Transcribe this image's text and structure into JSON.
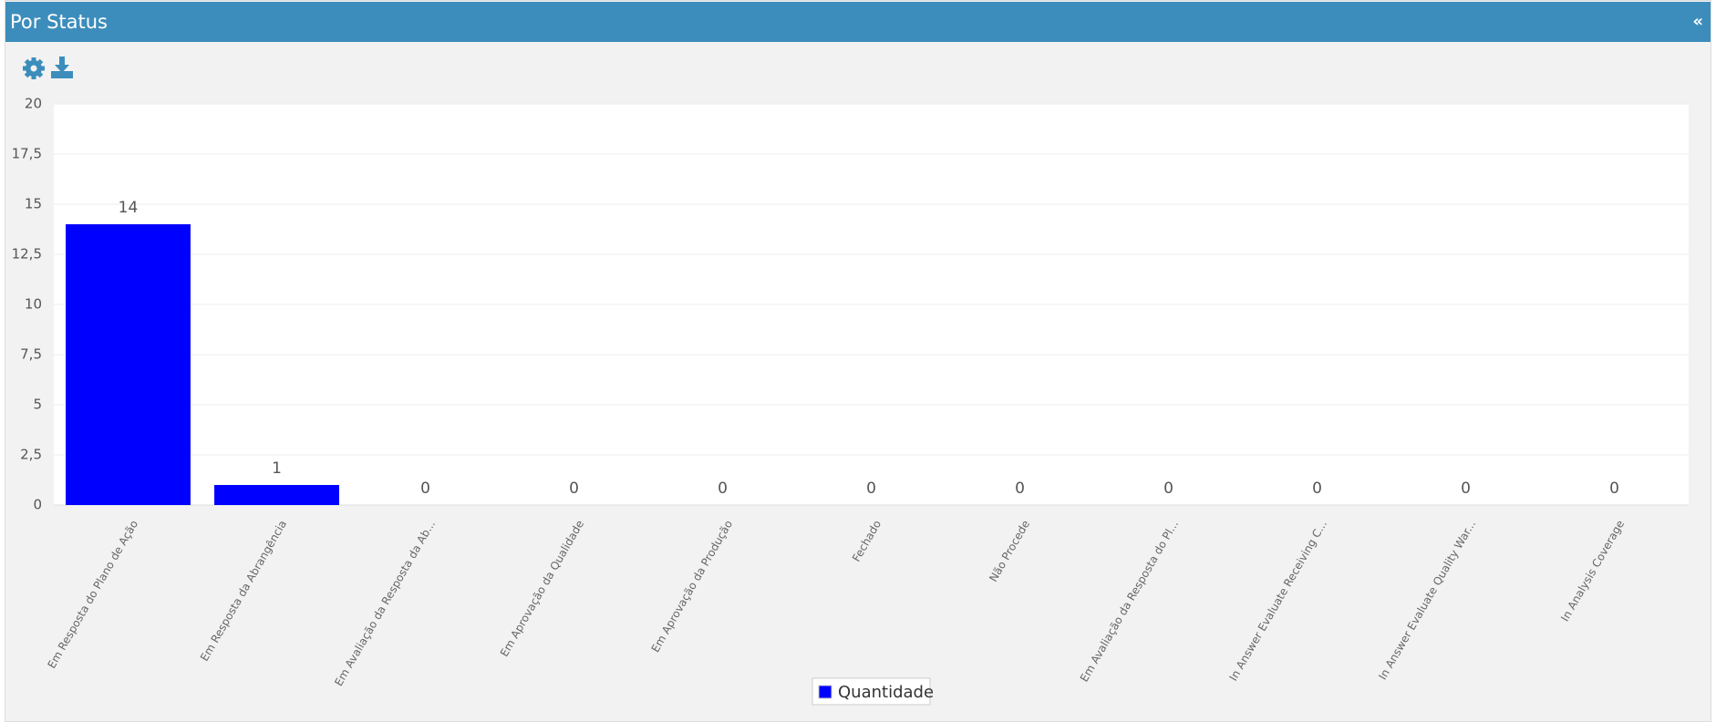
{
  "header": {
    "title": "Por Status",
    "collapse": "«"
  },
  "chart_data": {
    "type": "bar",
    "categories": [
      "Em Resposta do Plano de Ação",
      "Em Resposta da Abrangência",
      "Em Avaliação da Resposta da Ab...",
      "Em Aprovação da Qualidade",
      "Em Aprovação da Produção",
      "Fechado",
      "Não Procede",
      "Em Avaliação da Resposta do Pl...",
      "In Answer Evaluate Receiving C...",
      "In Answer Evaluate Quality War...",
      "In Analysis Coverage"
    ],
    "series": [
      {
        "name": "Quantidade",
        "color": "#0000ff",
        "values": [
          14,
          1,
          0,
          0,
          0,
          0,
          0,
          0,
          0,
          0,
          0
        ]
      }
    ],
    "ylim": [
      0,
      20
    ],
    "yticks": [
      0,
      {
        "value": 2.5,
        "label": "2,5"
      },
      5,
      {
        "value": 7.5,
        "label": "7,5"
      },
      10,
      {
        "value": 12.5,
        "label": "12,5"
      },
      15,
      {
        "value": 17.5,
        "label": "17,5"
      },
      20
    ],
    "grid": true,
    "legend": "bottom"
  }
}
